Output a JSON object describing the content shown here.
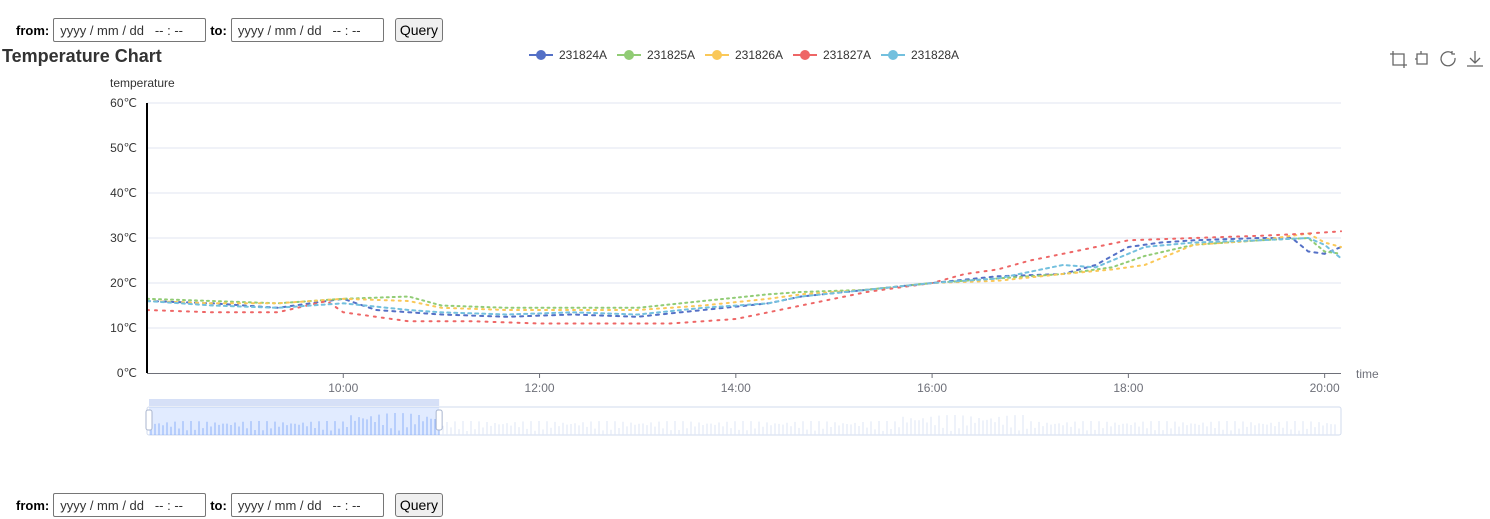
{
  "query1": {
    "from_label": "from:",
    "from_placeholder": "yyyy / mm / dd   -- : --",
    "to_label": "to:",
    "to_placeholder": "yyyy / mm / dd   -- : --",
    "button_label": "Query"
  },
  "query2": {
    "from_label": "from:",
    "from_placeholder": "yyyy / mm / dd   -- : --",
    "to_label": "to:",
    "to_placeholder": "yyyy / mm / dd   -- : --",
    "button_label": "Query"
  },
  "toolbox": {
    "icons": [
      "zoom-select-icon",
      "zoom-reset-icon",
      "restore-icon",
      "save-image-icon"
    ]
  },
  "chart_data": {
    "type": "line",
    "title": "Temperature Chart",
    "ylabel": "temperature",
    "xlabel": "time",
    "ylim": [
      0,
      60
    ],
    "yticks": [
      0,
      10,
      20,
      30,
      40,
      50,
      60
    ],
    "ytick_labels": [
      "0℃",
      "10℃",
      "20℃",
      "30℃",
      "40℃",
      "50℃",
      "60℃"
    ],
    "xlim": [
      "08:00",
      "20:10"
    ],
    "xticks": [
      "10:00",
      "12:00",
      "14:00",
      "16:00",
      "18:00",
      "20:00"
    ],
    "grid": true,
    "legend_position": "top-center",
    "dataZoom": {
      "start_fraction": 0.0,
      "end_fraction": 0.243
    },
    "series": [
      {
        "name": "231824A",
        "color": "#5470c6",
        "points": [
          [
            "08:00",
            16
          ],
          [
            "08:40",
            15.5
          ],
          [
            "09:20",
            14.5
          ],
          [
            "10:00",
            16.5
          ],
          [
            "10:20",
            14
          ],
          [
            "11:00",
            13
          ],
          [
            "11:40",
            12.5
          ],
          [
            "12:20",
            13
          ],
          [
            "13:00",
            12.5
          ],
          [
            "13:40",
            14
          ],
          [
            "14:20",
            15.5
          ],
          [
            "14:40",
            17
          ],
          [
            "15:20",
            18.5
          ],
          [
            "16:00",
            20
          ],
          [
            "16:40",
            21.5
          ],
          [
            "17:20",
            22
          ],
          [
            "17:40",
            24
          ],
          [
            "18:00",
            28
          ],
          [
            "18:20",
            29
          ],
          [
            "18:40",
            29.5
          ],
          [
            "19:20",
            30
          ],
          [
            "19:40",
            30
          ],
          [
            "19:50",
            27
          ],
          [
            "20:00",
            26.5
          ],
          [
            "20:10",
            28
          ]
        ]
      },
      {
        "name": "231825A",
        "color": "#91cc75",
        "points": [
          [
            "08:00",
            16.5
          ],
          [
            "08:40",
            16
          ],
          [
            "09:20",
            15.5
          ],
          [
            "10:00",
            16.5
          ],
          [
            "10:40",
            17
          ],
          [
            "11:00",
            15
          ],
          [
            "11:40",
            14.5
          ],
          [
            "12:20",
            14.5
          ],
          [
            "13:00",
            14.5
          ],
          [
            "13:40",
            16
          ],
          [
            "14:20",
            17.5
          ],
          [
            "14:40",
            18
          ],
          [
            "15:20",
            18.5
          ],
          [
            "16:00",
            20
          ],
          [
            "16:40",
            21
          ],
          [
            "17:20",
            22
          ],
          [
            "17:50",
            23.5
          ],
          [
            "18:10",
            26
          ],
          [
            "18:40",
            28.5
          ],
          [
            "19:20",
            29.5
          ],
          [
            "19:50",
            30
          ],
          [
            "20:00",
            27
          ],
          [
            "20:10",
            26.5
          ]
        ]
      },
      {
        "name": "231826A",
        "color": "#fac858",
        "points": [
          [
            "08:00",
            16
          ],
          [
            "08:40",
            15.5
          ],
          [
            "09:20",
            15.5
          ],
          [
            "10:00",
            16.5
          ],
          [
            "10:40",
            16
          ],
          [
            "11:00",
            14.5
          ],
          [
            "11:40",
            14
          ],
          [
            "12:20",
            14
          ],
          [
            "13:00",
            14
          ],
          [
            "13:40",
            15
          ],
          [
            "14:20",
            16.5
          ],
          [
            "14:40",
            17.5
          ],
          [
            "15:20",
            18.5
          ],
          [
            "16:00",
            20
          ],
          [
            "16:40",
            20.5
          ],
          [
            "17:20",
            22
          ],
          [
            "17:50",
            23
          ],
          [
            "18:10",
            24
          ],
          [
            "18:40",
            28.5
          ],
          [
            "19:20",
            29.5
          ],
          [
            "19:50",
            31
          ],
          [
            "20:00",
            29
          ],
          [
            "20:10",
            28
          ]
        ]
      },
      {
        "name": "231827A",
        "color": "#ee6666",
        "points": [
          [
            "08:00",
            14
          ],
          [
            "08:40",
            13.5
          ],
          [
            "09:20",
            13.5
          ],
          [
            "09:50",
            16
          ],
          [
            "10:00",
            13.5
          ],
          [
            "10:40",
            11.5
          ],
          [
            "11:20",
            11.5
          ],
          [
            "12:00",
            11
          ],
          [
            "12:40",
            11
          ],
          [
            "13:20",
            11
          ],
          [
            "14:00",
            12
          ],
          [
            "14:20",
            13.5
          ],
          [
            "14:40",
            15
          ],
          [
            "15:20",
            18
          ],
          [
            "16:00",
            20
          ],
          [
            "16:20",
            22
          ],
          [
            "16:40",
            23
          ],
          [
            "17:00",
            25
          ],
          [
            "17:20",
            26.5
          ],
          [
            "17:40",
            28
          ],
          [
            "18:00",
            29.5
          ],
          [
            "18:40",
            30
          ],
          [
            "19:20",
            30.5
          ],
          [
            "19:50",
            31
          ],
          [
            "20:10",
            31.5
          ]
        ]
      },
      {
        "name": "231828A",
        "color": "#73c0de",
        "points": [
          [
            "08:00",
            16
          ],
          [
            "08:40",
            15
          ],
          [
            "09:20",
            14.5
          ],
          [
            "10:00",
            15.5
          ],
          [
            "10:40",
            14
          ],
          [
            "11:00",
            13.5
          ],
          [
            "11:40",
            13
          ],
          [
            "12:20",
            13.5
          ],
          [
            "13:00",
            13
          ],
          [
            "13:40",
            14.5
          ],
          [
            "14:20",
            15.5
          ],
          [
            "14:40",
            17
          ],
          [
            "15:20",
            18.5
          ],
          [
            "16:00",
            20
          ],
          [
            "16:40",
            21
          ],
          [
            "17:20",
            24
          ],
          [
            "17:40",
            23.5
          ],
          [
            "18:10",
            28
          ],
          [
            "18:40",
            29
          ],
          [
            "19:20",
            29.5
          ],
          [
            "19:50",
            30
          ],
          [
            "20:00",
            28.5
          ],
          [
            "20:10",
            25.5
          ]
        ]
      }
    ]
  }
}
